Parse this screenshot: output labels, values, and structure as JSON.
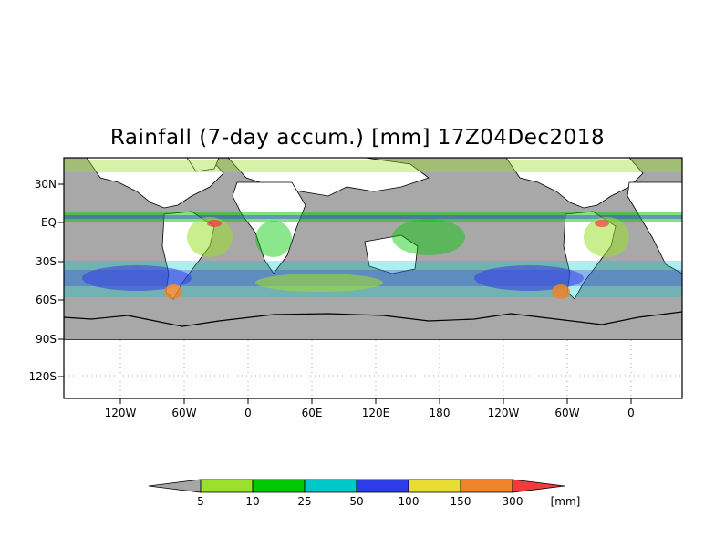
{
  "title": "Rainfall (7-day accum.) [mm] 17Z04Dec2018",
  "map": {
    "lat_ticks": [
      "30N",
      "EQ",
      "30S",
      "60S",
      "90S",
      "120S"
    ],
    "lon_ticks": [
      "120W",
      "60W",
      "0",
      "60E",
      "120E",
      "180",
      "120W",
      "60W",
      "0"
    ]
  },
  "legend": {
    "unit": "[mm]",
    "thresholds": [
      "5",
      "10",
      "25",
      "50",
      "100",
      "150",
      "300"
    ],
    "colors": [
      "#a6a6a6",
      "#9be02c",
      "#00c800",
      "#00c8c8",
      "#2c3ce6",
      "#e6dc32",
      "#f08228",
      "#f03c3c"
    ]
  }
}
